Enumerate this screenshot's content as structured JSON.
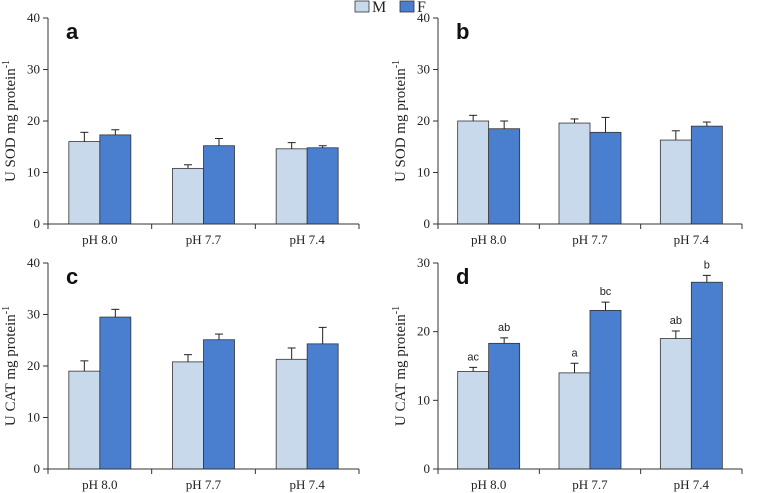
{
  "legend": [
    {
      "label": "M",
      "color": "#c9d9ec"
    },
    {
      "label": "F",
      "color": "#4a7fd0"
    }
  ],
  "chart_data": [
    {
      "type": "bar",
      "panel": "a",
      "ylabel": "U SOD mg protein",
      "ylabel_superscript": "-1",
      "ylim": [
        0,
        40
      ],
      "yticks": [
        "0",
        "10",
        "20",
        "30",
        "40"
      ],
      "categories": [
        "pH 8.0",
        "pH 7.7",
        "pH 7.4"
      ],
      "series": [
        {
          "name": "M",
          "values": [
            16.0,
            10.8,
            14.6
          ],
          "errors": [
            1.8,
            0.7,
            1.2
          ]
        },
        {
          "name": "F",
          "values": [
            17.3,
            15.2,
            14.8
          ],
          "errors": [
            1.0,
            1.4,
            0.4
          ]
        }
      ],
      "annotations": []
    },
    {
      "type": "bar",
      "panel": "b",
      "ylabel": "U SOD mg protein",
      "ylabel_superscript": "-1",
      "ylim": [
        0,
        40
      ],
      "yticks": [
        "0",
        "10",
        "20",
        "30",
        "40"
      ],
      "categories": [
        "pH 8.0",
        "pH 7.7",
        "pH 7.4"
      ],
      "series": [
        {
          "name": "M",
          "values": [
            20.0,
            19.6,
            16.3
          ],
          "errors": [
            1.1,
            0.8,
            1.8
          ]
        },
        {
          "name": "F",
          "values": [
            18.5,
            17.8,
            19.0
          ],
          "errors": [
            1.5,
            2.9,
            0.8
          ]
        }
      ],
      "annotations": []
    },
    {
      "type": "bar",
      "panel": "c",
      "ylabel": "U CAT  mg protein",
      "ylabel_superscript": "-1",
      "ylim": [
        0,
        40
      ],
      "yticks": [
        "0",
        "10",
        "20",
        "30",
        "40"
      ],
      "categories": [
        "pH 8.0",
        "pH 7.7",
        "pH 7.4"
      ],
      "series": [
        {
          "name": "M",
          "values": [
            19.0,
            20.8,
            21.3
          ],
          "errors": [
            2.0,
            1.4,
            2.2
          ]
        },
        {
          "name": "F",
          "values": [
            29.5,
            25.1,
            24.3
          ],
          "errors": [
            1.5,
            1.1,
            3.2
          ]
        }
      ],
      "annotations": []
    },
    {
      "type": "bar",
      "panel": "d",
      "ylabel": "U CAT  mg protein",
      "ylabel_superscript": "-1",
      "ylim": [
        0,
        30
      ],
      "yticks": [
        "0",
        "10",
        "20",
        "30"
      ],
      "categories": [
        "pH 8.0",
        "pH 7.7",
        "pH 7.4"
      ],
      "series": [
        {
          "name": "M",
          "values": [
            14.2,
            14.0,
            19.0
          ],
          "errors": [
            0.6,
            1.4,
            1.1
          ]
        },
        {
          "name": "F",
          "values": [
            18.3,
            23.1,
            27.2
          ],
          "errors": [
            0.8,
            1.2,
            1.0
          ]
        }
      ],
      "annotations": [
        {
          "series": 0,
          "index": 0,
          "text": "ac"
        },
        {
          "series": 1,
          "index": 0,
          "text": "ab"
        },
        {
          "series": 0,
          "index": 1,
          "text": "a"
        },
        {
          "series": 1,
          "index": 1,
          "text": "bc"
        },
        {
          "series": 0,
          "index": 2,
          "text": "ab"
        },
        {
          "series": 1,
          "index": 2,
          "text": "b"
        }
      ]
    }
  ]
}
